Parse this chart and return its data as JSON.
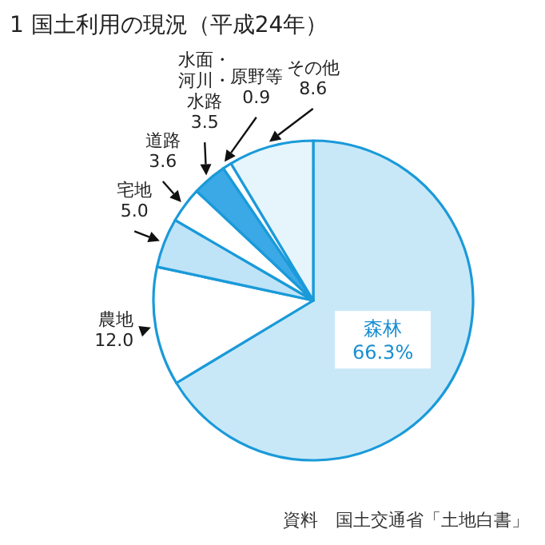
{
  "chart_data": {
    "type": "pie",
    "title": "1 国土利用の現況（平成24年）",
    "categories": [
      "森林",
      "農地",
      "宅地",
      "道路",
      "水面・河川・水路",
      "原野等",
      "その他"
    ],
    "values": [
      66.3,
      12.0,
      5.0,
      3.6,
      3.5,
      0.9,
      8.6
    ],
    "value_labels": [
      "66.3%",
      "12.0",
      "5.0",
      "3.6",
      "3.5",
      "0.9",
      "8.6"
    ],
    "colors": [
      "#c8e8f8",
      "#ffffff",
      "#bfe3f7",
      "#ffffff",
      "#3aa9e6",
      "#ffffff",
      "#e6f4fc"
    ],
    "annotations": [
      "資料　国土交通省「土地白書」"
    ]
  }
}
